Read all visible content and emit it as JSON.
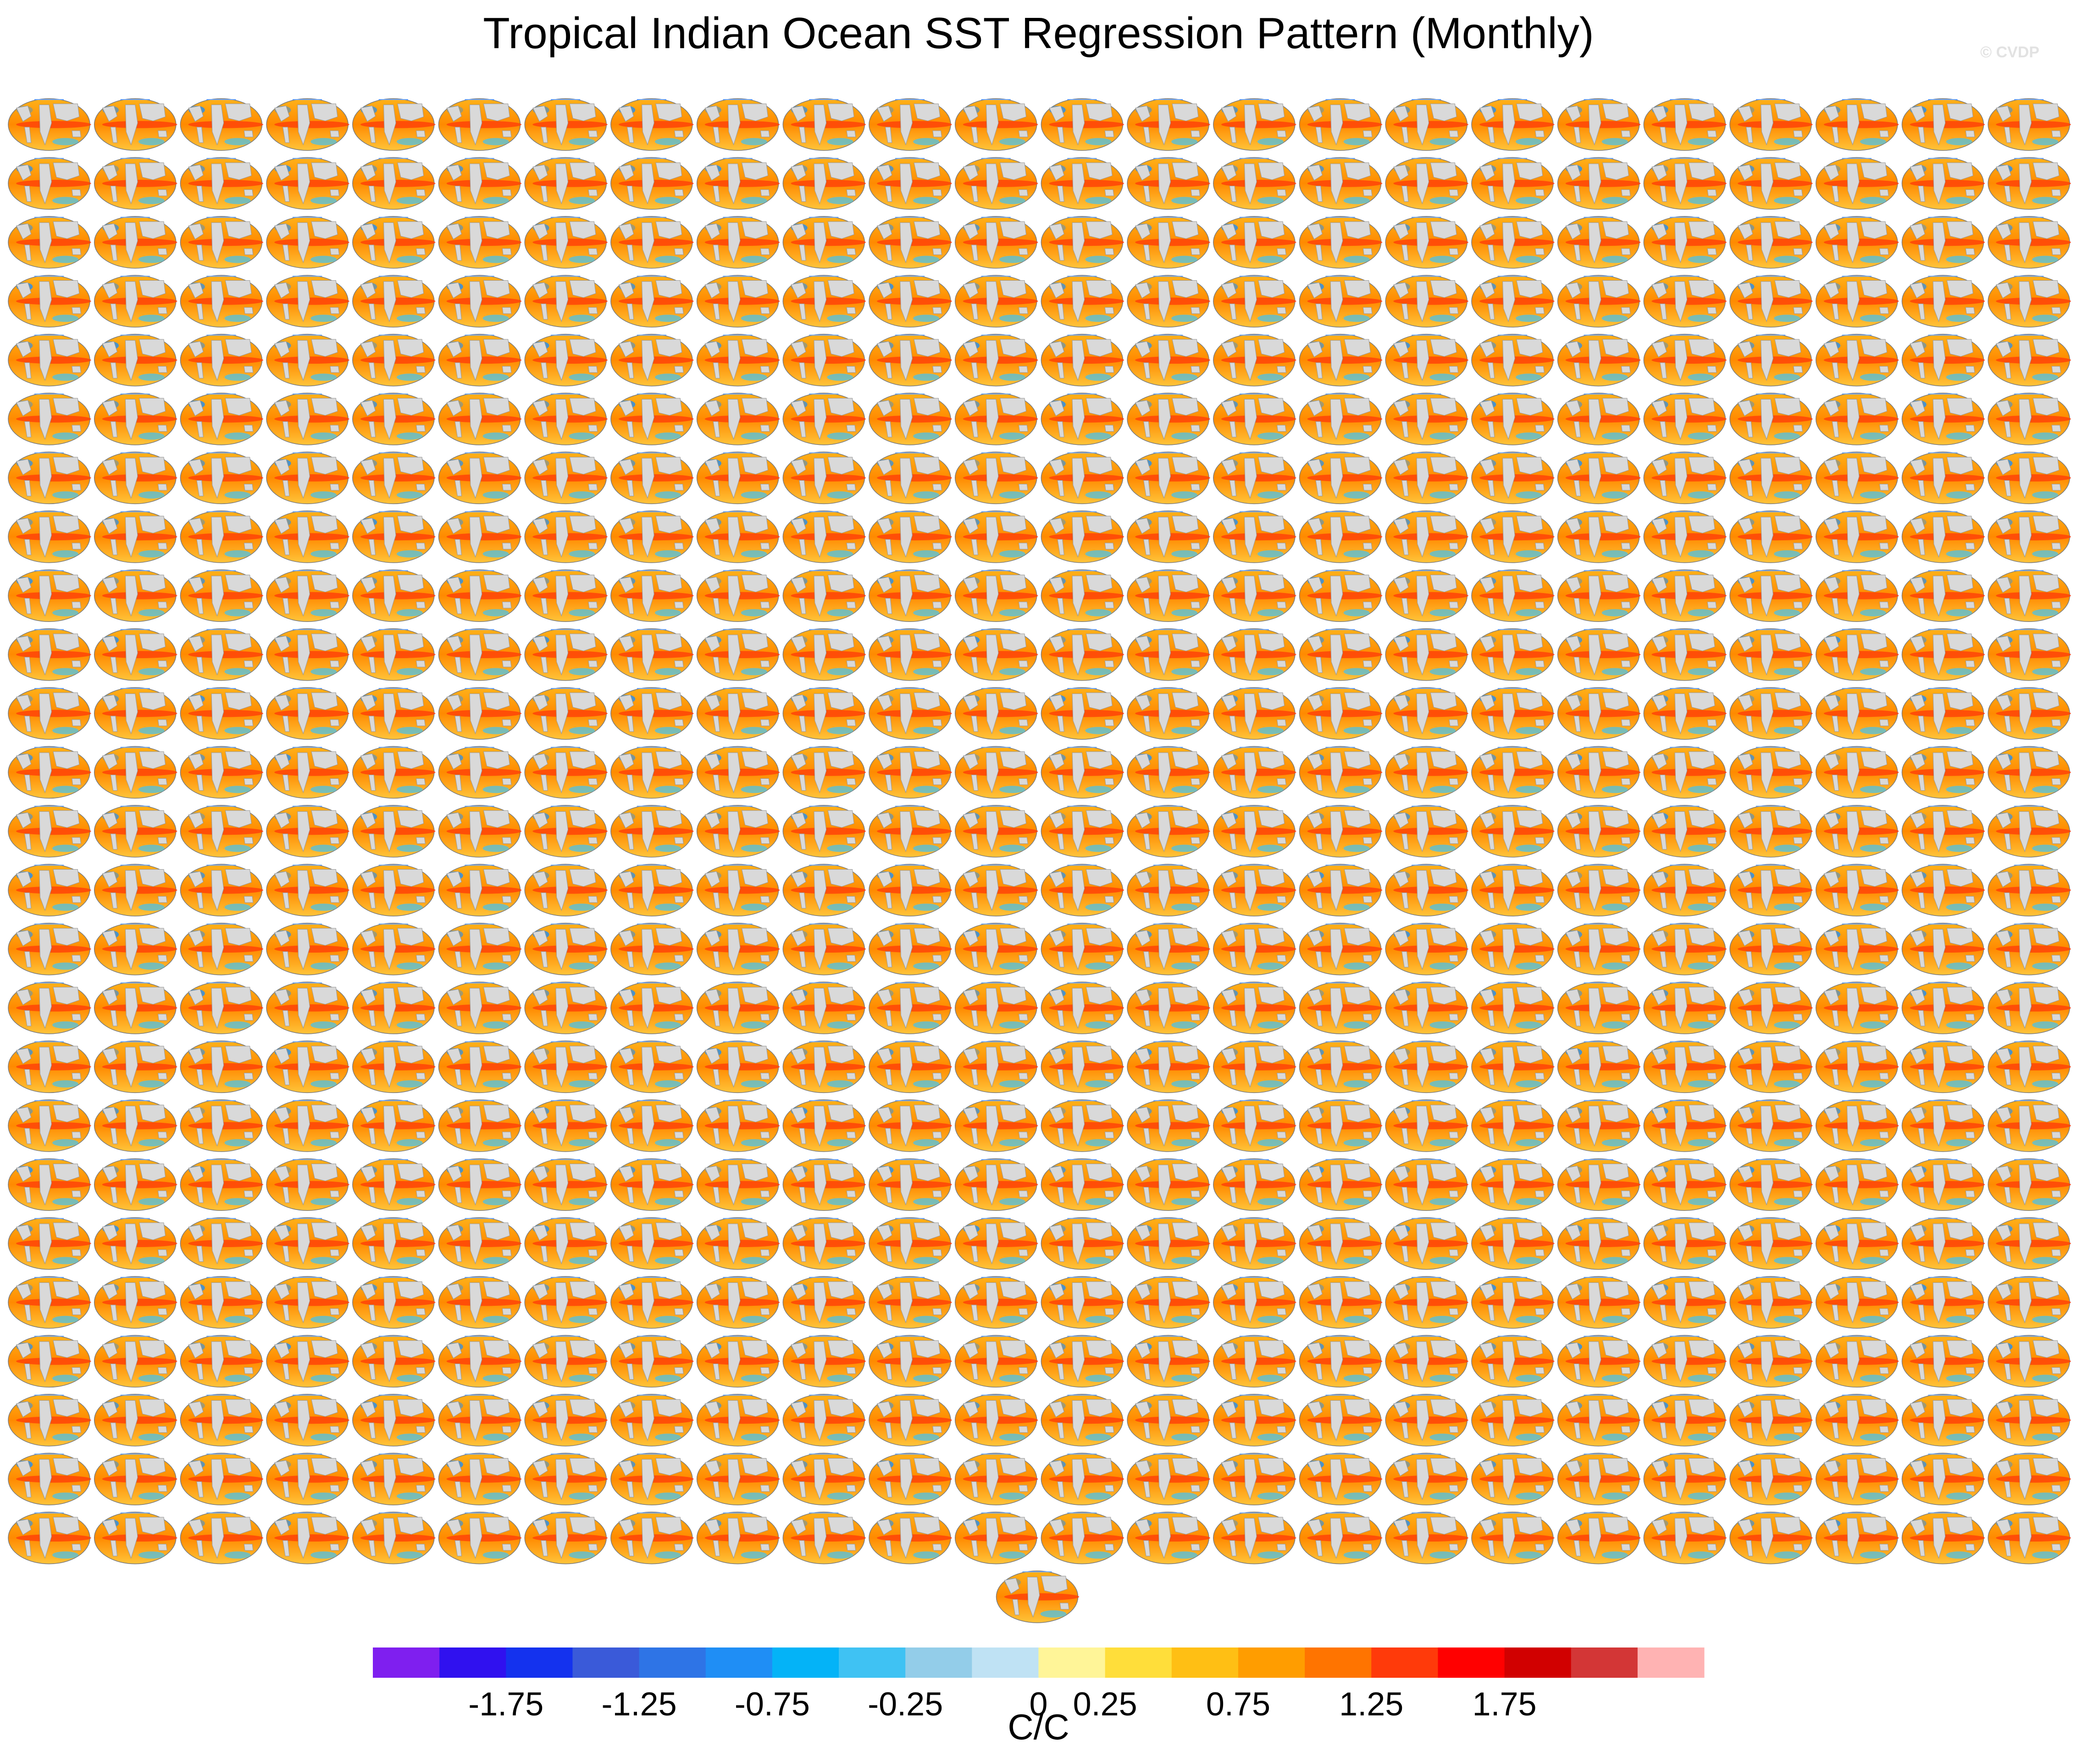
{
  "title": "Tropical Indian Ocean SST Regression Pattern (Monthly)",
  "watermark": "© CVDP",
  "grid": {
    "rows": 25,
    "columns": 24,
    "extra_panels_last_row": 1
  },
  "panel": {
    "map_type": "global-sst-regression",
    "land_color": "#d9d9d9",
    "ocean_base": "#ffc21a"
  },
  "colorbar": {
    "units": "C/C",
    "colors": [
      "#7f1fef",
      "#3011ef",
      "#1432ee",
      "#3a5ad9",
      "#2e74e6",
      "#1f8ef5",
      "#04b3f7",
      "#3fc2f3",
      "#93cde9",
      "#bfe2f4",
      "#fff598",
      "#ffde3a",
      "#ffbf14",
      "#ff9d00",
      "#ff7400",
      "#ff3a0a",
      "#ff0000",
      "#d10000",
      "#d33636",
      "#ffb3b3"
    ],
    "tick_labels": [
      "-1.75",
      "-1.25",
      "-0.75",
      "-0.25",
      "0",
      "0.25",
      "0.75",
      "1.25",
      "1.75"
    ]
  }
}
